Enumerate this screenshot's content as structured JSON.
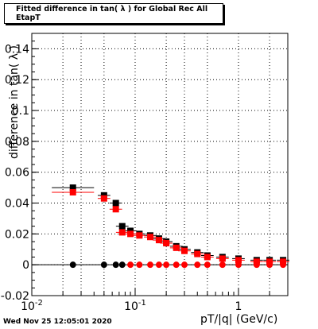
{
  "header": {
    "title": "Fitted difference in tan( λ ) for Global Rec All EtapT",
    "timestamp": "Wed Nov 25 12:05:01 2020"
  },
  "chart_data": {
    "type": "scatter",
    "title": "Fitted difference in tan( λ ) for Global Rec All EtapT",
    "xlabel": "pT/|q| (GeV/c)",
    "ylabel": "difference in tan( λ )",
    "x_scale": "log",
    "xlim": [
      0.01,
      3.0
    ],
    "ylim": [
      -0.02,
      0.15
    ],
    "grid": true,
    "x_ticks": [
      0.01,
      0.1,
      1
    ],
    "x_tick_labels": [
      "10^-2",
      "10^-1",
      "1"
    ],
    "y_ticks": [
      -0.02,
      0,
      0.02,
      0.04,
      0.06,
      0.08,
      0.1,
      0.12,
      0.14
    ],
    "y_tick_labels": [
      "-0.02",
      "0",
      "0.02",
      "0.04",
      "0.06",
      "0.08",
      "0.1",
      "0.12",
      "0.14"
    ],
    "series": [
      {
        "color": "#000000",
        "marker": "square",
        "x": [
          0.025,
          0.05,
          0.065,
          0.075,
          0.09,
          0.11,
          0.14,
          0.17,
          0.2,
          0.25,
          0.3,
          0.4,
          0.5,
          0.7,
          1.0,
          1.5,
          2.0,
          2.7
        ],
        "y": [
          0.05,
          0.045,
          0.04,
          0.025,
          0.022,
          0.02,
          0.019,
          0.017,
          0.015,
          0.012,
          0.01,
          0.008,
          0.006,
          0.005,
          0.004,
          0.003,
          0.003,
          0.003
        ]
      },
      {
        "color": "#ff0000",
        "marker": "square",
        "x": [
          0.025,
          0.05,
          0.065,
          0.075,
          0.09,
          0.11,
          0.14,
          0.17,
          0.2,
          0.25,
          0.3,
          0.4,
          0.5,
          0.7,
          1.0,
          1.5,
          2.0,
          2.7
        ],
        "y": [
          0.047,
          0.043,
          0.036,
          0.021,
          0.02,
          0.019,
          0.018,
          0.016,
          0.014,
          0.011,
          0.009,
          0.007,
          0.005,
          0.004,
          0.003,
          0.002,
          0.002,
          0.002
        ]
      },
      {
        "color": "#000000",
        "marker": "circle",
        "x": [
          0.025,
          0.05,
          0.065,
          0.075
        ],
        "y": [
          0,
          0,
          0,
          0
        ]
      },
      {
        "color": "#ff0000",
        "marker": "circle",
        "x": [
          0.09,
          0.11,
          0.14,
          0.17,
          0.2,
          0.25,
          0.3,
          0.4,
          0.5,
          0.7,
          1.0,
          1.5,
          2.0,
          2.7
        ],
        "y": [
          0,
          0,
          0,
          0,
          0,
          0,
          0,
          0,
          0,
          0,
          0,
          0,
          0,
          0
        ]
      }
    ],
    "colors": {
      "series_black": "#000000",
      "series_red": "#ff0000",
      "grid": "#000000"
    }
  }
}
